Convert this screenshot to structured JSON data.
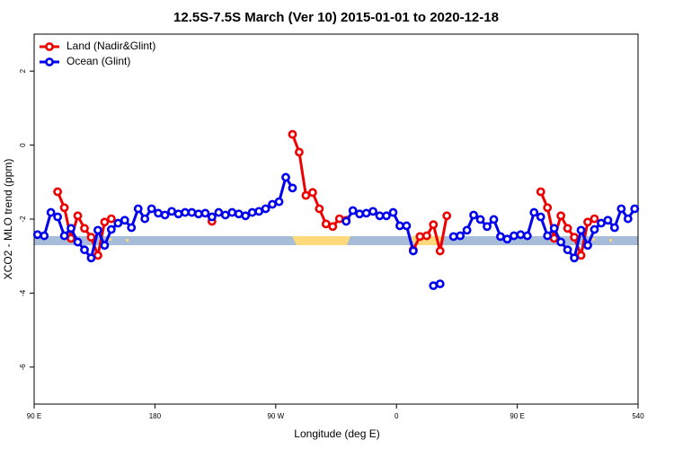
{
  "chart_data": {
    "type": "line",
    "title": "12.5S-7.5S March (Ver 10)   2015-01-01 to 2020-12-18",
    "x_label": "Longitude (deg E)",
    "y_label": "XCO2 - MLO trend (ppm)",
    "legend": "top-left",
    "x": [
      92.5,
      97.5,
      102.5,
      107.5,
      112.5,
      117.5,
      122.5,
      127.5,
      132.5,
      137.5,
      142.5,
      147.5,
      152.5,
      157.5,
      162.5,
      167.5,
      172.5,
      177.5,
      182.5,
      187.5,
      192.5,
      197.5,
      202.5,
      207.5,
      212.5,
      217.5,
      222.5,
      227.5,
      232.5,
      237.5,
      242.5,
      247.5,
      252.5,
      257.5,
      262.5,
      267.5,
      272.5,
      277.5,
      282.5,
      287.5,
      292.5,
      297.5,
      302.5,
      307.5,
      312.5,
      317.5,
      322.5,
      327.5,
      332.5,
      337.5,
      342.5,
      347.5,
      352.5,
      357.5,
      362.5,
      367.5,
      372.5,
      377.5,
      382.5,
      387.5,
      392.5,
      397.5,
      402.5,
      407.5,
      412.5,
      417.5,
      422.5,
      427.5,
      432.5,
      437.5,
      442.5,
      447.5,
      452.5,
      457.5,
      462.5,
      467.5,
      472.5,
      477.5,
      482.5,
      487.5,
      492.5,
      497.5,
      502.5,
      507.5,
      512.5,
      517.5,
      522.5,
      527.5,
      532.5,
      537.5
    ],
    "series": [
      {
        "name": "Land (Nadir&Glint)",
        "color": "#ee0000",
        "values": [
          null,
          null,
          null,
          -1.26,
          -1.69,
          -2.52,
          -1.91,
          -2.25,
          -2.49,
          -2.98,
          -2.08,
          -1.99,
          null,
          null,
          null,
          null,
          null,
          null,
          null,
          null,
          null,
          null,
          null,
          null,
          null,
          null,
          -2.06,
          null,
          null,
          null,
          null,
          null,
          null,
          null,
          null,
          null,
          null,
          null,
          0.29,
          -0.19,
          -1.36,
          -1.28,
          -1.72,
          -2.13,
          -2.2,
          -1.99,
          -2.03,
          null,
          null,
          null,
          null,
          null,
          null,
          null,
          null,
          null,
          -2.83,
          -2.47,
          -2.45,
          -2.15,
          -2.86,
          -1.91,
          null,
          null,
          null,
          null,
          null,
          null,
          null,
          null,
          null,
          null,
          null,
          null,
          null,
          -1.26,
          -1.69,
          -2.52,
          -1.91,
          -2.25,
          -2.49,
          -2.98,
          -2.08,
          -1.99,
          null,
          null,
          null,
          null,
          null,
          null
        ]
      },
      {
        "name": "Ocean (Glint)",
        "color": "#0000ee",
        "values": [
          -2.42,
          -2.45,
          -1.82,
          -1.94,
          -2.45,
          -2.25,
          -2.62,
          -2.83,
          -3.05,
          -2.3,
          -2.71,
          -2.28,
          -2.11,
          -2.03,
          -2.23,
          -1.72,
          -1.99,
          -1.72,
          -1.84,
          -1.89,
          -1.79,
          -1.86,
          -1.82,
          -1.82,
          -1.86,
          -1.84,
          -1.94,
          -1.82,
          -1.89,
          -1.82,
          -1.86,
          -1.91,
          -1.82,
          -1.79,
          -1.72,
          -1.6,
          -1.53,
          -0.87,
          -1.16,
          null,
          null,
          null,
          null,
          null,
          null,
          null,
          -2.06,
          -1.77,
          -1.86,
          -1.84,
          -1.79,
          -1.91,
          -1.91,
          -1.82,
          -2.18,
          -2.18,
          -2.86,
          null,
          null,
          -3.8,
          -3.75,
          null,
          -2.47,
          -2.45,
          -2.3,
          -1.89,
          -2.01,
          -2.2,
          -2.01,
          -2.47,
          -2.54,
          -2.45,
          -2.42,
          -2.45,
          -1.82,
          -1.94,
          -2.45,
          -2.25,
          -2.62,
          -2.83,
          -3.05,
          -2.3,
          -2.71,
          -2.28,
          -2.11,
          -2.03,
          -2.23,
          -1.72,
          -1.99,
          -1.72
        ]
      }
    ],
    "xlim": [
      90,
      540
    ],
    "xticks": [
      {
        "value": 90,
        "label": "90 E"
      },
      180,
      {
        "value": 270,
        "label": "90 W"
      },
      {
        "value": 360,
        "label": "0"
      },
      {
        "value": 450,
        "label": "90 E"
      },
      540
    ],
    "ylim": [
      -7,
      3
    ],
    "yticks": [
      -6,
      -4,
      -2,
      0,
      2
    ],
    "grid": false
  }
}
